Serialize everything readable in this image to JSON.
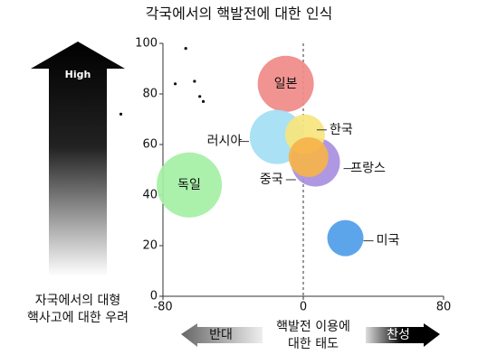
{
  "chart_data": {
    "type": "bubble",
    "title": "각국에서의 핵발전에 대한 인식",
    "ylabel": [
      "자국에서의 대형",
      "핵사고에 대한 우려"
    ],
    "xlabel": [
      "핵발전 이용에",
      "대한 태도"
    ],
    "high_label": "High",
    "left_label": "반대",
    "right_label": "찬성",
    "xlim": [
      -80,
      80
    ],
    "xticks": [
      -80,
      0,
      80
    ],
    "ylim": [
      0,
      100
    ],
    "yticks": [
      0,
      20,
      40,
      60,
      80,
      100
    ],
    "bubbles": {
      "names": [
        "일본",
        "한국",
        "러시아",
        "프랑스",
        "중국",
        "독일",
        "미국"
      ],
      "colors": [
        "#f08a88",
        "#f7e57c",
        "#a3def3",
        "#a88fe0",
        "#f6b34a",
        "#a4f0a4",
        "#4f9de8"
      ],
      "x": [
        -10,
        1,
        -15,
        7,
        3,
        -65,
        24
      ],
      "values": [
        84,
        64,
        63,
        53,
        55,
        44,
        23
      ],
      "sizes": [
        31,
        22,
        30,
        27,
        22,
        36,
        20
      ]
    },
    "points": {
      "x": [
        -67,
        -73,
        -62,
        -59,
        -57,
        -104
      ],
      "values": [
        98,
        84,
        85,
        79,
        77,
        72
      ]
    }
  }
}
